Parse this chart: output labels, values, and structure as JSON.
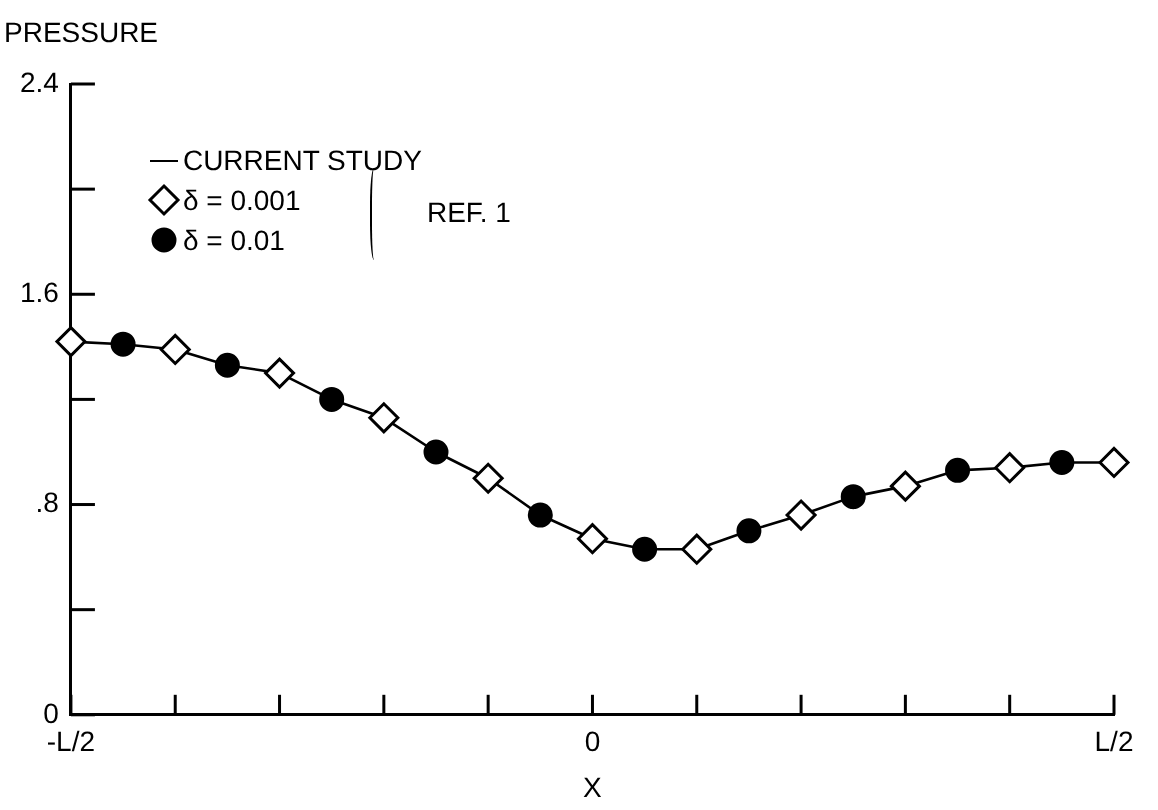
{
  "chart_data": {
    "type": "line",
    "xlabel": "X",
    "ylabel": "PRESSURE",
    "categories": [
      "-L/2",
      null,
      null,
      null,
      null,
      null,
      null,
      null,
      null,
      null,
      "0",
      null,
      null,
      null,
      null,
      null,
      null,
      null,
      null,
      null,
      "L/2"
    ],
    "ylim": [
      0,
      2.4
    ],
    "yticks": [
      0,
      {
        "value": 0.4,
        "label": null
      },
      {
        "value": 0.8,
        "label": ".8"
      },
      {
        "value": 1.2,
        "label": null
      },
      1.6,
      {
        "value": 2.0,
        "label": null
      },
      2.4
    ],
    "legend": "top left",
    "grid": false,
    "line_style": "solid",
    "annotations": [
      "REF. 1"
    ],
    "series": [
      {
        "name": "CURRENT STUDY",
        "marker": "none",
        "color": "#000000",
        "values": [
          1.42,
          1.41,
          1.39,
          1.33,
          1.3,
          1.2,
          1.13,
          1.0,
          0.9,
          0.76,
          0.67,
          0.63,
          0.63,
          0.7,
          0.76,
          0.83,
          0.87,
          0.93,
          0.94,
          0.96,
          0.96
        ]
      },
      {
        "name": "δ = 0.001",
        "type": "scatter",
        "marker": "diamond",
        "color": "#000000",
        "values": [
          1.42,
          null,
          1.39,
          null,
          1.3,
          null,
          1.13,
          null,
          0.9,
          null,
          0.67,
          null,
          0.63,
          null,
          0.76,
          null,
          0.87,
          null,
          0.94,
          null,
          0.96
        ]
      },
      {
        "name": "δ = 0.01",
        "type": "scatter",
        "marker": "circle",
        "color": "#000000",
        "values": [
          null,
          1.41,
          null,
          1.33,
          null,
          1.2,
          null,
          1.0,
          null,
          0.76,
          null,
          0.63,
          null,
          0.7,
          null,
          0.83,
          null,
          0.93,
          null,
          0.96,
          null
        ]
      }
    ]
  }
}
